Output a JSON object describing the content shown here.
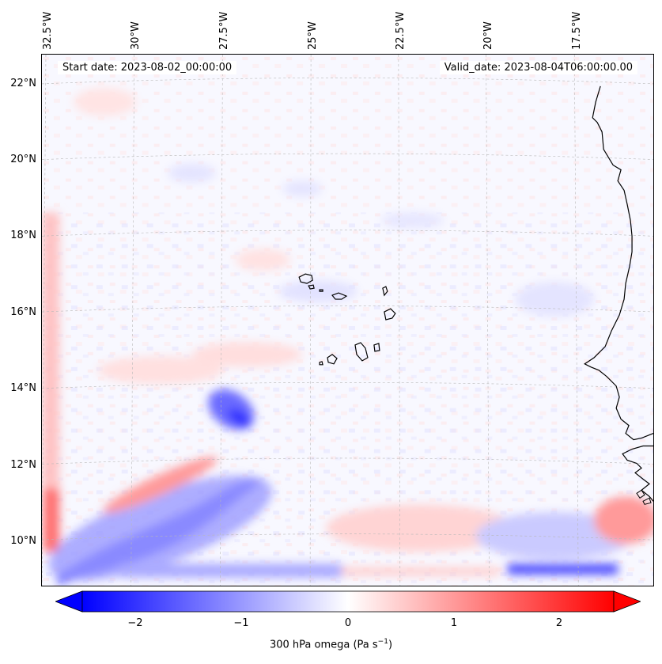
{
  "map": {
    "start_date": "Start date: 2023-08-02_00:00:00",
    "valid_date": "Valid_date: 2023-08-04T06:00:00.00",
    "longitude_labels": [
      "32.5°W",
      "30°W",
      "27.5°W",
      "25°W",
      "22.5°W",
      "20°W",
      "17.5°W"
    ],
    "latitude_labels": [
      "22°N",
      "20°N",
      "18°N",
      "16°N",
      "14°N",
      "12°N",
      "10°N"
    ],
    "field": "300 hPa omega",
    "region": "Cape Verde Islands and West African coast"
  },
  "colorbar": {
    "tick_labels": [
      "−2",
      "−1",
      "0",
      "1",
      "2"
    ],
    "title_main": "300 hPa omega (Pa s",
    "title_exp": "−1",
    "title_close": ")",
    "min_color": "#0000ff",
    "mid_color": "#ffffff",
    "max_color": "#ff0000"
  }
}
